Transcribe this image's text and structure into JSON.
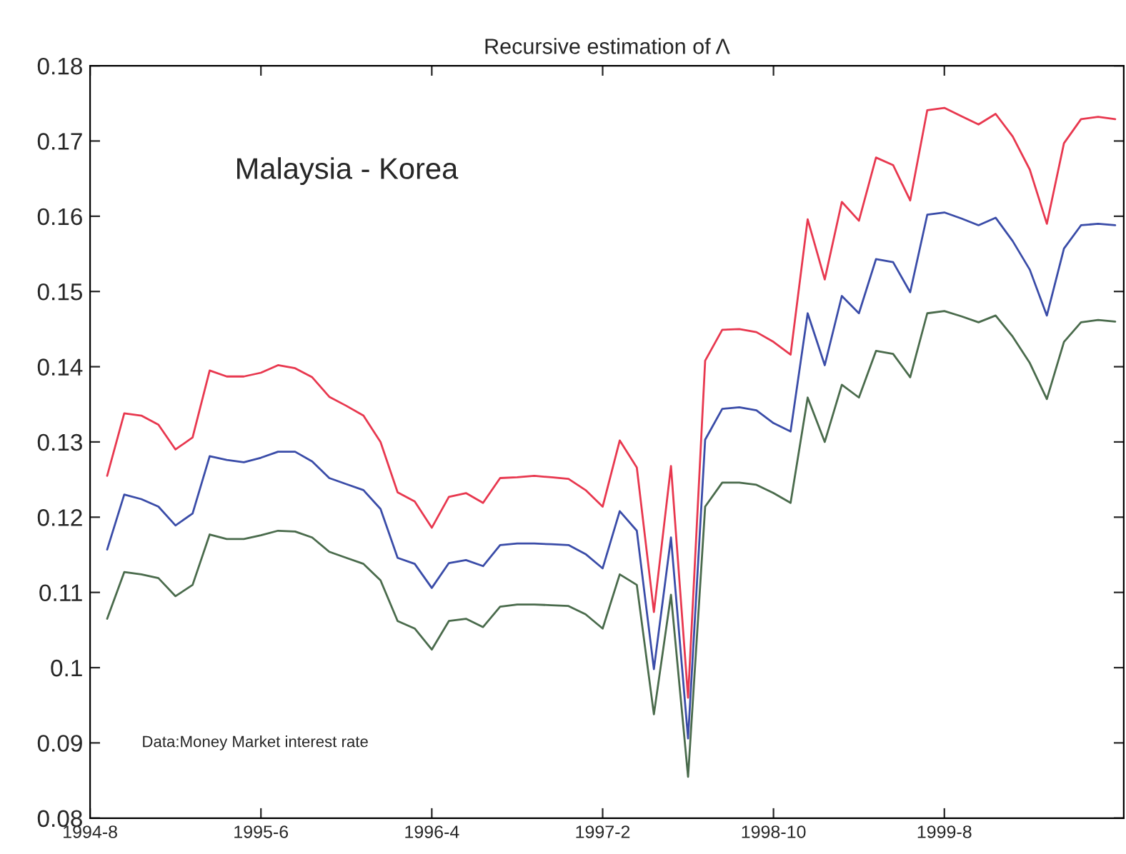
{
  "chart_data": {
    "type": "line",
    "title": "Recursive estimation of Λ",
    "annotations": [
      "Malaysia - Korea",
      "Data:Money Market interest rate"
    ],
    "categories": [
      "1994-8",
      null,
      null,
      null,
      null,
      null,
      null,
      null,
      null,
      null,
      "1995-6",
      null,
      null,
      null,
      null,
      null,
      null,
      null,
      null,
      null,
      "1996-4",
      null,
      null,
      null,
      null,
      null,
      null,
      null,
      null,
      null,
      "1997-2",
      null,
      null,
      null,
      null,
      null,
      null,
      null,
      null,
      null,
      "1998-10",
      null,
      null,
      null,
      null,
      null,
      null,
      null,
      null,
      null,
      "1999-8",
      null,
      null,
      null,
      null,
      null,
      null,
      null,
      null,
      null,
      null
    ],
    "series": [
      {
        "color": "#e8384f",
        "values": [
          null,
          0.1255,
          0.1338,
          0.1335,
          0.1323,
          0.129,
          0.1306,
          0.1395,
          0.1387,
          0.1387,
          0.1392,
          0.1402,
          0.1398,
          0.1386,
          0.136,
          0.1348,
          0.1335,
          0.13,
          0.1233,
          0.1221,
          0.1186,
          0.1227,
          0.1232,
          0.1219,
          0.1252,
          0.1253,
          0.1255,
          0.1253,
          0.1251,
          0.1236,
          0.1214,
          0.1302,
          0.1266,
          0.1074,
          0.1268,
          0.096,
          0.1408,
          0.1449,
          0.145,
          0.1446,
          0.1433,
          0.1416,
          0.1596,
          0.1516,
          0.1619,
          0.1594,
          0.1678,
          0.1668,
          0.1621,
          0.1741,
          0.1744,
          0.1733,
          0.1722,
          0.1736,
          0.1706,
          0.1662,
          0.159,
          0.1697,
          0.1729,
          0.1732,
          0.1729
        ]
      },
      {
        "color": "#3a4ca8",
        "values": [
          null,
          0.1157,
          0.123,
          0.1224,
          0.1214,
          0.1189,
          0.1205,
          0.1281,
          0.1276,
          0.1273,
          0.1279,
          0.1287,
          0.1287,
          0.1274,
          0.1252,
          0.1244,
          0.1236,
          0.1211,
          0.1146,
          0.1138,
          0.1106,
          0.1139,
          0.1143,
          0.1135,
          0.1163,
          0.1165,
          0.1165,
          0.1164,
          0.1163,
          0.1151,
          0.1132,
          0.1208,
          0.1182,
          0.0998,
          0.1173,
          0.0906,
          0.1303,
          0.1344,
          0.1346,
          0.1342,
          0.1325,
          0.1314,
          0.1471,
          0.1402,
          0.1494,
          0.1471,
          0.1543,
          0.1539,
          0.1499,
          0.1602,
          0.1605,
          0.1597,
          0.1588,
          0.1598,
          0.1567,
          0.1529,
          0.1468,
          0.1557,
          0.1588,
          0.159,
          0.1588
        ]
      },
      {
        "color": "#4a6b4c",
        "values": [
          null,
          0.1065,
          0.1127,
          0.1124,
          0.1119,
          0.1095,
          0.111,
          0.1177,
          0.1171,
          0.1171,
          0.1176,
          0.1182,
          0.1181,
          0.1173,
          0.1154,
          0.1146,
          0.1138,
          0.1116,
          0.1062,
          0.1052,
          0.1024,
          0.1062,
          0.1065,
          0.1054,
          0.1081,
          0.1084,
          0.1084,
          0.1083,
          0.1082,
          0.1071,
          0.1052,
          0.1124,
          0.111,
          0.0938,
          0.1097,
          0.0855,
          0.1214,
          0.1246,
          0.1246,
          0.1243,
          0.1232,
          0.1219,
          0.1359,
          0.13,
          0.1376,
          0.1359,
          0.1421,
          0.1417,
          0.1386,
          0.1471,
          0.1474,
          0.1467,
          0.1459,
          0.1468,
          0.144,
          0.1405,
          0.1357,
          0.1433,
          0.1459,
          0.1462,
          0.146
        ]
      }
    ],
    "ylim": [
      0.08,
      0.18
    ],
    "yticks": [
      0.08,
      0.09,
      0.1,
      0.11,
      0.12,
      0.13,
      0.14,
      0.15,
      0.16,
      0.17,
      0.18
    ]
  }
}
